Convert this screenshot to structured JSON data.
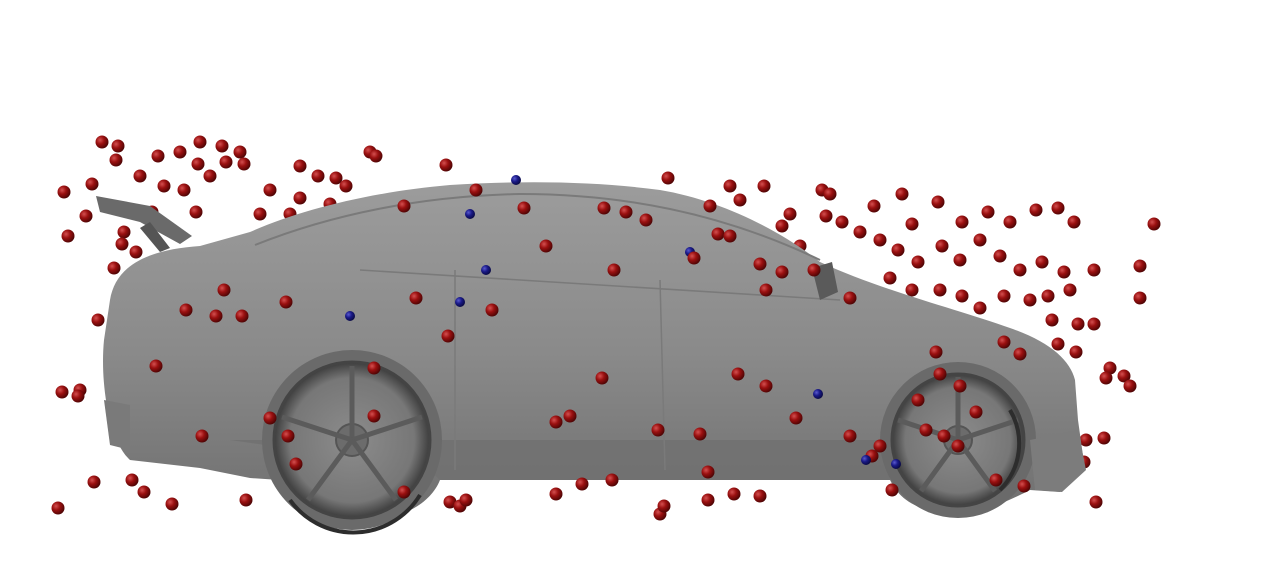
{
  "scene": {
    "subject": "car-3d-render",
    "background_color": "#ffffff",
    "car_body_color": "#8a8a8a",
    "car_shadow_color": "#5c5c5c",
    "car_highlight_color": "#a6a6a6",
    "wheel_color": "#7a7a7a",
    "particle_colors": {
      "red": "#8b0d0d",
      "red_highlight": "#c23a3a",
      "blue": "#14146e",
      "blue_highlight": "#3a3ab0"
    }
  }
}
